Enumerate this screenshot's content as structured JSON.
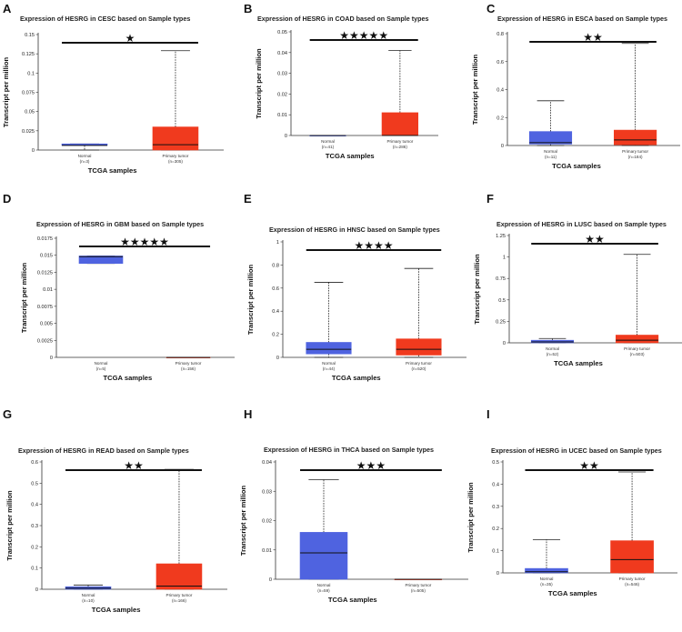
{
  "chart_data": [
    {
      "type": "box",
      "letter": "A",
      "title": "Expression of HESRG in CESC based on Sample types",
      "ylabel": "Transcript per million",
      "xlabel": "TCGA samples",
      "ylim": [
        0,
        0.15
      ],
      "yticks": [
        "0",
        "0.025",
        "0.05",
        "0.075",
        "0.1",
        "0.125",
        "0.15"
      ],
      "significance": "★",
      "groups": [
        {
          "name": "Normal",
          "n": "(n=3)",
          "min": 0.0,
          "q1": 0.006,
          "median": 0.006,
          "q3": 0.008,
          "max": 0.008,
          "color": "#4f63e0"
        },
        {
          "name": "Primary tumor",
          "n": "(n=305)",
          "min": 0.0,
          "q1": 0.0,
          "median": 0.007,
          "q3": 0.03,
          "max": 0.129,
          "color": "#f03a1e"
        }
      ]
    },
    {
      "type": "box",
      "letter": "B",
      "title": "Expression of HESRG in COAD based on Sample types",
      "ylabel": "Transcript per million",
      "xlabel": "TCGA samples",
      "ylim": [
        0,
        0.05
      ],
      "yticks": [
        "0",
        "0.01",
        "0.02",
        "0.03",
        "0.04",
        "0.05"
      ],
      "significance": "★★★★★",
      "groups": [
        {
          "name": "Normal",
          "n": "(n=41)",
          "min": 0.0,
          "q1": 0.0,
          "median": 0.0,
          "q3": 0.0,
          "max": 0.0,
          "color": "#4f63e0"
        },
        {
          "name": "Primary tumor",
          "n": "(n=286)",
          "min": 0.0,
          "q1": 0.0,
          "median": 0.0,
          "q3": 0.011,
          "max": 0.041,
          "color": "#f03a1e"
        }
      ]
    },
    {
      "type": "box",
      "letter": "C",
      "title": "Expression of HESRG in ESCA based on Sample types",
      "ylabel": "Transcript per million",
      "xlabel": "TCGA samples",
      "ylim": [
        0,
        0.8
      ],
      "yticks": [
        "0",
        "0.2",
        "0.4",
        "0.6",
        "0.8"
      ],
      "significance": "★★",
      "groups": [
        {
          "name": "Normal",
          "n": "(n=11)",
          "min": 0.0,
          "q1": 0.01,
          "median": 0.02,
          "q3": 0.1,
          "max": 0.32,
          "color": "#4f63e0"
        },
        {
          "name": "Primary tumor",
          "n": "(n=184)",
          "min": 0.0,
          "q1": 0.005,
          "median": 0.04,
          "q3": 0.11,
          "max": 0.73,
          "color": "#f03a1e"
        }
      ]
    },
    {
      "type": "box",
      "letter": "D",
      "title": "Expression of HESRG in GBM based on Sample types",
      "ylabel": "Transcript per million",
      "xlabel": "TCGA samples",
      "ylim": [
        0,
        0.0175
      ],
      "yticks": [
        "0",
        "0.0025",
        "0.005",
        "0.0075",
        "0.01",
        "0.0125",
        "0.015",
        "0.0175"
      ],
      "significance": "★★★★★",
      "groups": [
        {
          "name": "Normal",
          "n": "(n=5)",
          "min": 0.0138,
          "q1": 0.0138,
          "median": 0.0148,
          "q3": 0.0149,
          "max": 0.0149,
          "color": "#4f63e0"
        },
        {
          "name": "Primary tumor",
          "n": "(n=156)",
          "min": 0.0,
          "q1": 0.0,
          "median": 0.0,
          "q3": 0.0,
          "max": 0.0,
          "color": "#f03a1e"
        }
      ]
    },
    {
      "type": "box",
      "letter": "E",
      "title": "Expression of HESRG in HNSC based on Sample types",
      "ylabel": "Transcript per million",
      "xlabel": "TCGA samples",
      "ylim": [
        0,
        1
      ],
      "yticks": [
        "0",
        "0.2",
        "0.4",
        "0.6",
        "0.8",
        "1"
      ],
      "significance": "★★★★",
      "groups": [
        {
          "name": "Normal",
          "n": "(n=44)",
          "min": 0.0,
          "q1": 0.03,
          "median": 0.07,
          "q3": 0.13,
          "max": 0.65,
          "color": "#4f63e0"
        },
        {
          "name": "Primary tumor",
          "n": "(n=520)",
          "min": 0.0,
          "q1": 0.02,
          "median": 0.07,
          "q3": 0.16,
          "max": 0.77,
          "color": "#f03a1e"
        }
      ]
    },
    {
      "type": "box",
      "letter": "F",
      "title": "Expression of HESRG in LUSC based on Sample types",
      "ylabel": "Transcript per million",
      "xlabel": "TCGA samples",
      "ylim": [
        0,
        1.25
      ],
      "yticks": [
        "0",
        "0.25",
        "0.5",
        "0.75",
        "1",
        "1.25"
      ],
      "significance": "★★",
      "groups": [
        {
          "name": "Normal",
          "n": "(n=52)",
          "min": 0.0,
          "q1": 0.0,
          "median": 0.01,
          "q3": 0.03,
          "max": 0.05,
          "color": "#4f63e0"
        },
        {
          "name": "Primary tumor",
          "n": "(n=503)",
          "min": 0.0,
          "q1": 0.0,
          "median": 0.03,
          "q3": 0.09,
          "max": 1.03,
          "color": "#f03a1e"
        }
      ]
    },
    {
      "type": "box",
      "letter": "G",
      "title": "Expression of HESRG in READ based on Sample types",
      "ylabel": "Transcript per million",
      "xlabel": "TCGA samples",
      "ylim": [
        0,
        0.6
      ],
      "yticks": [
        "0",
        "0.1",
        "0.2",
        "0.3",
        "0.4",
        "0.5",
        "0.6"
      ],
      "significance": "★★",
      "groups": [
        {
          "name": "Normal",
          "n": "(n=10)",
          "min": 0.0,
          "q1": 0.0,
          "median": 0.005,
          "q3": 0.012,
          "max": 0.02,
          "color": "#4f63e0"
        },
        {
          "name": "Primary tumor",
          "n": "(n=166)",
          "min": 0.0,
          "q1": 0.0,
          "median": 0.015,
          "q3": 0.12,
          "max": 0.565,
          "color": "#f03a1e"
        }
      ]
    },
    {
      "type": "box",
      "letter": "H",
      "title": "Expression of HESRG in THCA based on Sample types",
      "ylabel": "Transcript per million",
      "xlabel": "TCGA samples",
      "ylim": [
        0,
        0.04
      ],
      "yticks": [
        "0",
        "0.01",
        "0.02",
        "0.03",
        "0.04"
      ],
      "significance": "★★★",
      "groups": [
        {
          "name": "Normal",
          "n": "(n=59)",
          "min": 0.0,
          "q1": 0.0,
          "median": 0.009,
          "q3": 0.016,
          "max": 0.034,
          "color": "#4f63e0"
        },
        {
          "name": "Primary tumor",
          "n": "(n=505)",
          "min": 0.0,
          "q1": 0.0,
          "median": 0.0,
          "q3": 0.0,
          "max": 0.0,
          "color": "#f03a1e"
        }
      ]
    },
    {
      "type": "box",
      "letter": "I",
      "title": "Expression of HESRG in UCEC based on Sample types",
      "ylabel": "Transcript per million",
      "xlabel": "TCGA samples",
      "ylim": [
        0,
        0.5
      ],
      "yticks": [
        "0",
        "0.1",
        "0.2",
        "0.3",
        "0.4",
        "0.5"
      ],
      "significance": "★★",
      "groups": [
        {
          "name": "Normal",
          "n": "(n=35)",
          "min": 0.0,
          "q1": 0.0,
          "median": 0.005,
          "q3": 0.02,
          "max": 0.15,
          "color": "#4f63e0"
        },
        {
          "name": "Primary tumor",
          "n": "(n=546)",
          "min": 0.0,
          "q1": 0.0,
          "median": 0.06,
          "q3": 0.145,
          "max": 0.455,
          "color": "#f03a1e"
        }
      ]
    }
  ]
}
